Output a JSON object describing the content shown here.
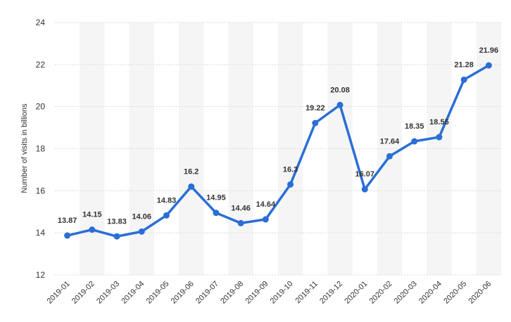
{
  "chart_data": {
    "type": "line",
    "title": "",
    "xlabel": "",
    "ylabel": "Number of visits in billions",
    "ylim": [
      12,
      24
    ],
    "yticks": [
      12,
      14,
      16,
      18,
      20,
      22,
      24
    ],
    "grid": true,
    "legend": "none",
    "color": "#2a6ed6",
    "categories": [
      "2019-01",
      "2019-02",
      "2019-03",
      "2019-04",
      "2019-05",
      "2019-06",
      "2019-07",
      "2019-08",
      "2019-09",
      "2019-10",
      "2019-11",
      "2019-12",
      "2020-01",
      "2020-02",
      "2020-03",
      "2020-04",
      "2020-05",
      "2020-06"
    ],
    "values": [
      13.87,
      14.15,
      13.83,
      14.06,
      14.83,
      16.2,
      14.95,
      14.46,
      14.64,
      16.3,
      19.22,
      20.08,
      16.07,
      17.64,
      18.35,
      18.55,
      21.28,
      21.96
    ],
    "value_labels": [
      "13.87",
      "14.15",
      "13.83",
      "14.06",
      "14.83",
      "16.2",
      "14.95",
      "14.46",
      "14.64",
      "16.3",
      "19.22",
      "20.08",
      "16.07",
      "17.64",
      "18.35",
      "18.55",
      "21.28",
      "21.96"
    ]
  }
}
